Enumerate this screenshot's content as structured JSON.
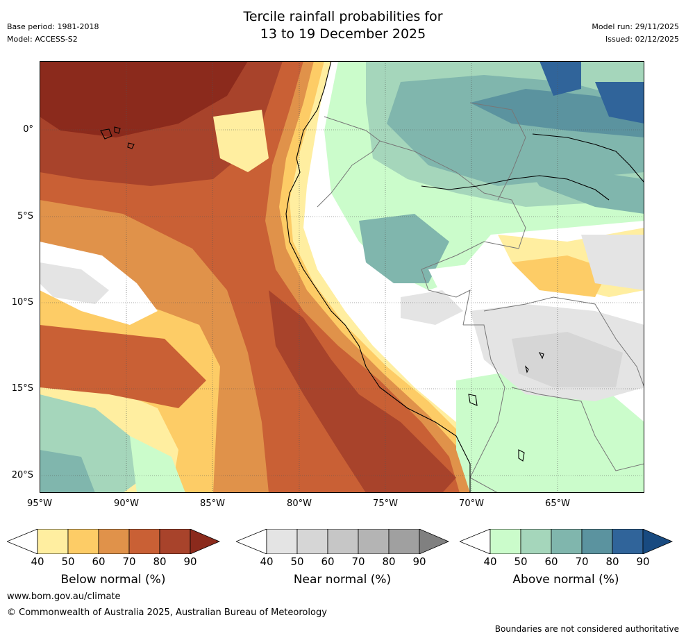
{
  "header": {
    "title_line1": "Tercile rainfall probabilities for",
    "title_line2": "13 to 19 December 2025",
    "base_period": "Base period: 1981-2018",
    "model": "Model: ACCESS-S2",
    "model_run": "Model run: 29/11/2025",
    "issued": "Issued: 02/12/2025"
  },
  "axes": {
    "lat_labels": [
      "0°",
      "5°S",
      "10°S",
      "15°S",
      "20°S"
    ],
    "lon_labels": [
      "95°W",
      "90°W",
      "85°W",
      "80°W",
      "75°W",
      "70°W",
      "65°W"
    ]
  },
  "colorbars": [
    {
      "label": "Below normal (%)",
      "ticks": [
        "40",
        "50",
        "60",
        "70",
        "80",
        "90"
      ],
      "colors": [
        "#ffeea0",
        "#fdcc66",
        "#e0924a",
        "#c96035",
        "#a8432b",
        "#8b2a1c"
      ]
    },
    {
      "label": "Near normal (%)",
      "ticks": [
        "40",
        "50",
        "60",
        "70",
        "80",
        "90"
      ],
      "colors": [
        "#e4e4e4",
        "#d6d6d6",
        "#c6c6c6",
        "#b4b4b4",
        "#a0a0a0",
        "#808080"
      ]
    },
    {
      "label": "Above normal (%)",
      "ticks": [
        "40",
        "50",
        "60",
        "70",
        "80",
        "90"
      ],
      "colors": [
        "#cbfccb",
        "#a5d6bb",
        "#80b6ad",
        "#5b939f",
        "#30649a",
        "#184a80"
      ]
    }
  ],
  "footer": {
    "url": "www.bom.gov.au/climate",
    "copyright": "© Commonwealth of Australia 2025, Australian Bureau of Meteorology",
    "note": "Boundaries are not considered authoritative"
  }
}
